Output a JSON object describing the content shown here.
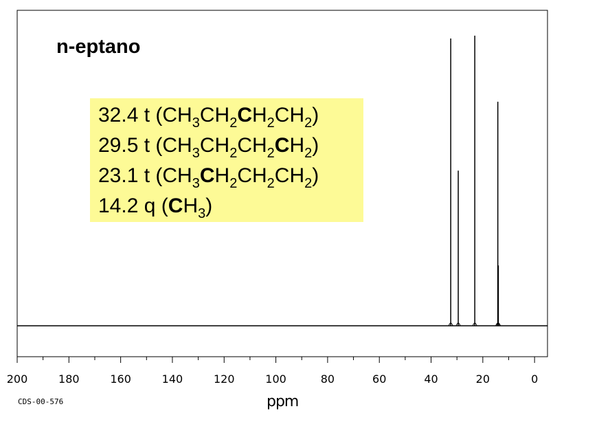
{
  "chart_data": {
    "type": "line",
    "title": "n-eptano",
    "xlabel": "ppm",
    "xlim": [
      200,
      -5
    ],
    "x_reversed": true,
    "x_ticks": [
      "200",
      "180",
      "160",
      "140",
      "120",
      "100",
      "80",
      "60",
      "40",
      "20",
      "0"
    ],
    "x_tick_values": [
      200,
      180,
      160,
      140,
      120,
      100,
      80,
      60,
      40,
      20,
      0
    ],
    "peaks": [
      {
        "ppm": 32.4,
        "intensity": 1.0
      },
      {
        "ppm": 29.5,
        "intensity": 0.54
      },
      {
        "ppm": 23.1,
        "intensity": 1.01
      },
      {
        "ppm": 14.2,
        "intensity": 0.78
      },
      {
        "ppm": 14.0,
        "intensity": 0.21
      }
    ],
    "annotations": [
      {
        "shift": "32.4",
        "mult": "t",
        "parts": [
          [
            "(CH",
            ""
          ],
          [
            "3",
            "sub"
          ],
          [
            "CH",
            ""
          ],
          [
            "2",
            "sub"
          ],
          [
            "C",
            "b"
          ],
          [
            "H",
            ""
          ],
          [
            "2",
            "sub"
          ],
          [
            "CH",
            ""
          ],
          [
            "2",
            "sub"
          ],
          [
            ")",
            ""
          ]
        ]
      },
      {
        "shift": "29.5",
        "mult": "t",
        "parts": [
          [
            "(CH",
            ""
          ],
          [
            "3",
            "sub"
          ],
          [
            "CH",
            ""
          ],
          [
            "2",
            "sub"
          ],
          [
            "CH",
            ""
          ],
          [
            "2",
            "sub"
          ],
          [
            "C",
            "b"
          ],
          [
            "H",
            ""
          ],
          [
            "2",
            "sub"
          ],
          [
            ")",
            ""
          ]
        ]
      },
      {
        "shift": "23.1",
        "mult": "t",
        "parts": [
          [
            "(CH",
            ""
          ],
          [
            "3",
            "sub"
          ],
          [
            "C",
            "b"
          ],
          [
            "H",
            ""
          ],
          [
            "2",
            "sub"
          ],
          [
            "CH",
            ""
          ],
          [
            "2",
            "sub"
          ],
          [
            "CH",
            ""
          ],
          [
            "2",
            "sub"
          ],
          [
            ")",
            ""
          ]
        ]
      },
      {
        "shift": "14.2",
        "mult": "q",
        "parts": [
          [
            "(",
            ""
          ],
          [
            "C",
            "b"
          ],
          [
            "H",
            ""
          ],
          [
            "3",
            "sub"
          ],
          [
            ")",
            ""
          ]
        ]
      }
    ],
    "code": "CDS-00-576",
    "highlight_color": "#fdfa96",
    "line_color": "#000000"
  }
}
